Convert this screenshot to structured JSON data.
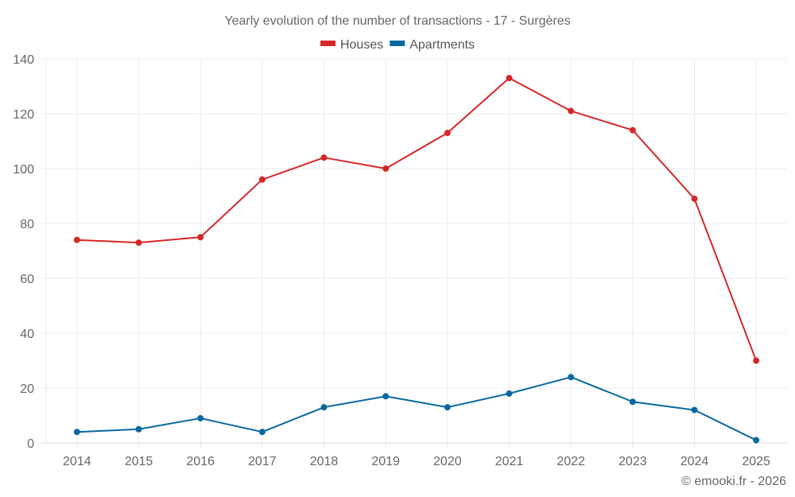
{
  "chart_data": {
    "type": "line",
    "title": "Yearly evolution of the number of transactions - 17 - Surgères",
    "xlabel": "",
    "ylabel": "",
    "categories": [
      "2014",
      "2015",
      "2016",
      "2017",
      "2018",
      "2019",
      "2020",
      "2021",
      "2022",
      "2023",
      "2024",
      "2025"
    ],
    "series": [
      {
        "name": "Houses",
        "color": "#d62728",
        "values": [
          74,
          73,
          75,
          96,
          104,
          100,
          113,
          133,
          121,
          114,
          89,
          30
        ]
      },
      {
        "name": "Apartments",
        "color": "#0868a0",
        "values": [
          4,
          5,
          9,
          4,
          13,
          17,
          13,
          18,
          24,
          15,
          12,
          1
        ]
      }
    ],
    "ylim": [
      0,
      140
    ],
    "yticks": [
      0,
      20,
      40,
      60,
      80,
      100,
      120,
      140
    ],
    "grid": true,
    "legend_position": "top-center",
    "credit": "© emooki.fr - 2026"
  }
}
